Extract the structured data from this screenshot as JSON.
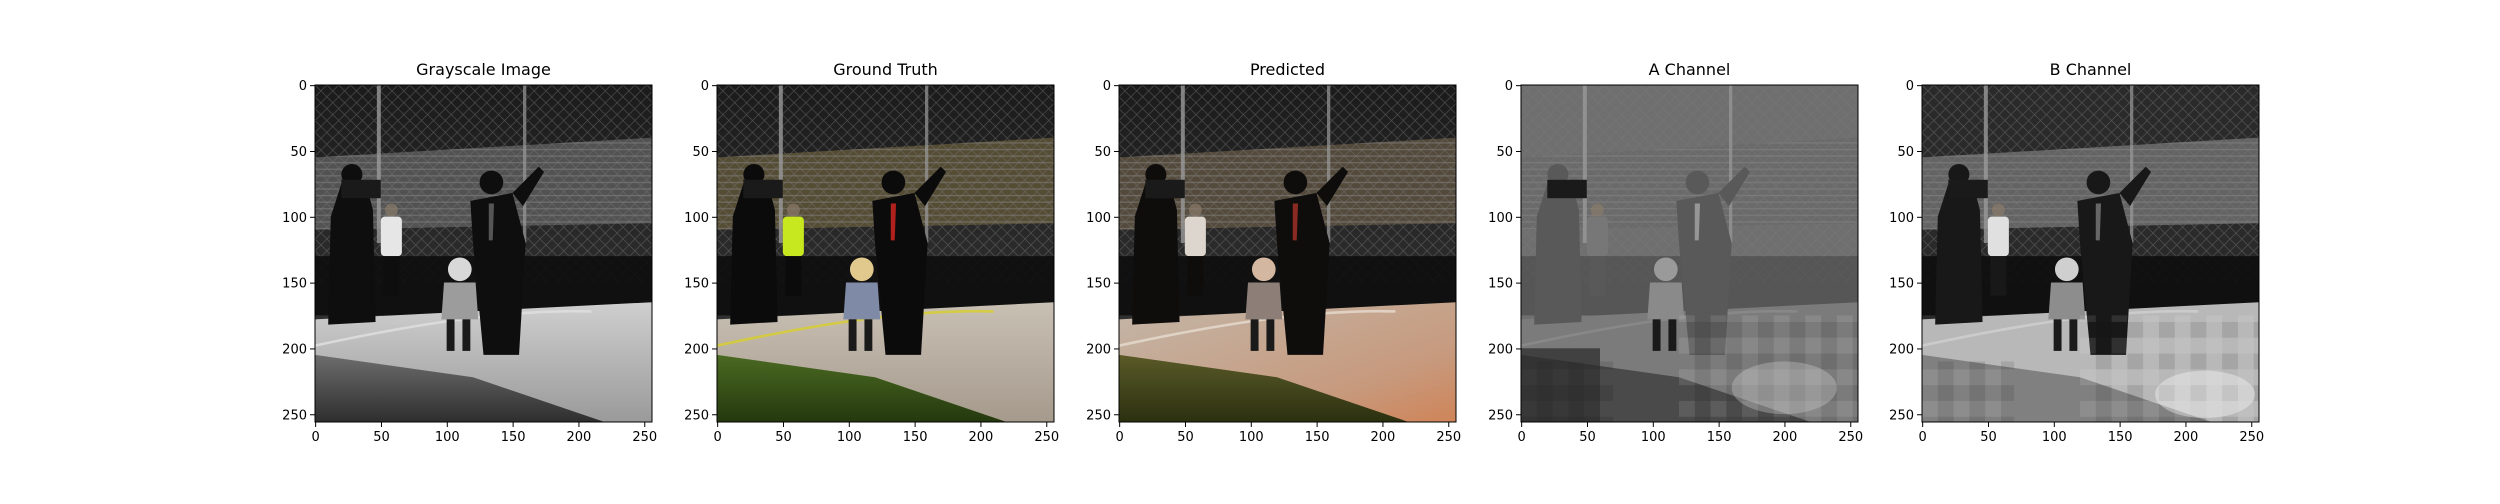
{
  "figure": {
    "panels": [
      {
        "title": "Grayscale Image",
        "tone": "gray"
      },
      {
        "title": "Ground Truth",
        "tone": "color"
      },
      {
        "title": "Predicted",
        "tone": "predicted"
      },
      {
        "title": "A Channel",
        "tone": "a"
      },
      {
        "title": "B Channel",
        "tone": "b"
      }
    ],
    "axes": {
      "x_ticks": [
        "0",
        "50",
        "100",
        "150",
        "200",
        "250"
      ],
      "y_ticks": [
        "0",
        "50",
        "100",
        "150",
        "200",
        "250"
      ],
      "range": [
        0,
        256
      ]
    }
  }
}
